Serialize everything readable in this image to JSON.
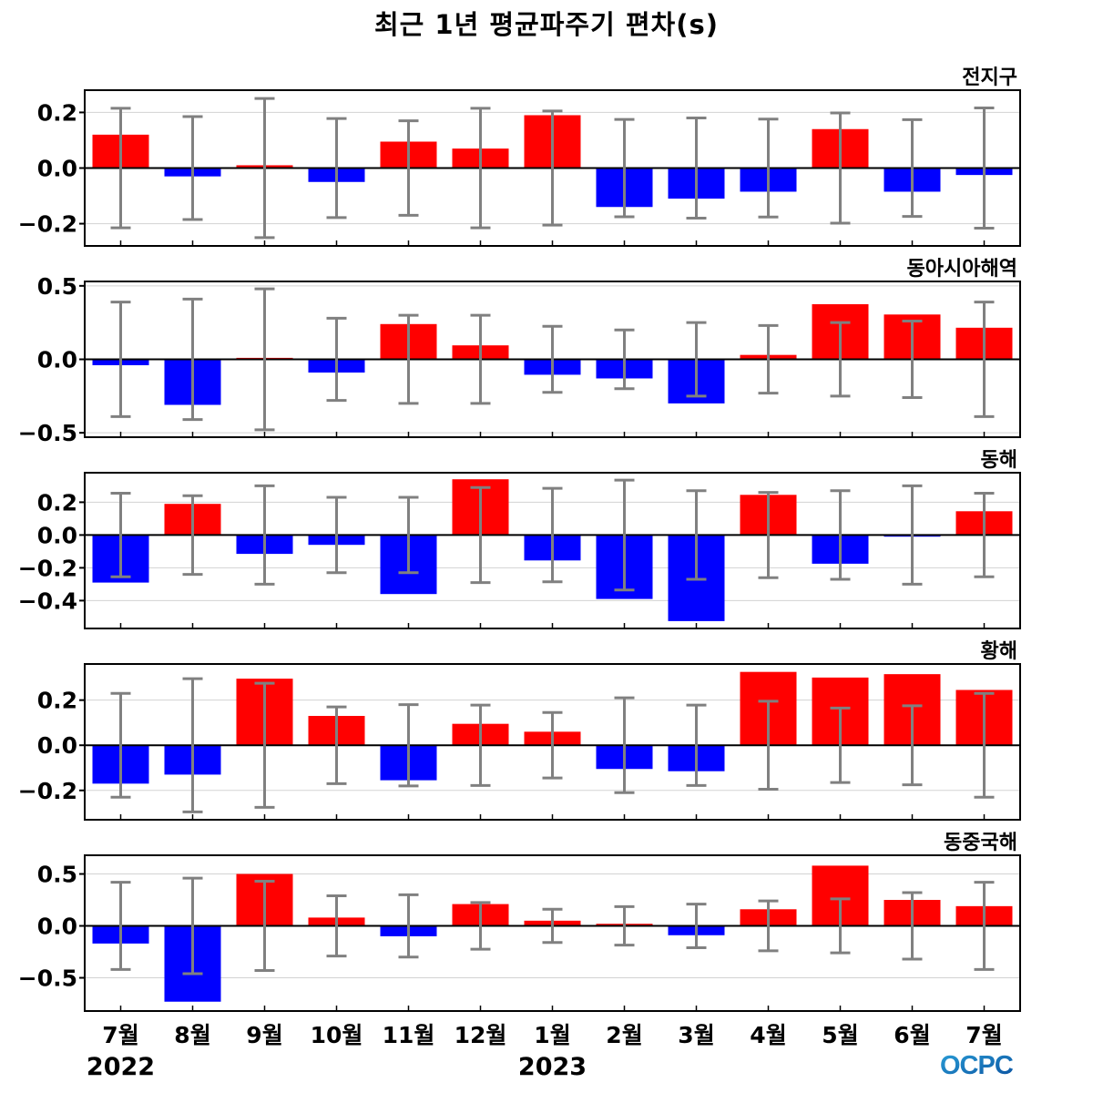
{
  "title": "최근 1년 평균파주기 편차(s)",
  "logo_text": "OCPC",
  "colors": {
    "positive": "#ff0000",
    "negative": "#0000ff",
    "errorbar": "#808080",
    "grid": "#d3d3d3"
  },
  "chart_data": {
    "type": "bar",
    "categories": [
      "7월",
      "8월",
      "9월",
      "10월",
      "11월",
      "12월",
      "1월",
      "2월",
      "3월",
      "4월",
      "5월",
      "6월",
      "7월"
    ],
    "year_labels": [
      {
        "text": "2022",
        "category_index": 0
      },
      {
        "text": "2023",
        "category_index": 6
      }
    ],
    "panels": [
      {
        "name": "전지구",
        "ylim": [
          -0.28,
          0.28
        ],
        "yticks": [
          0.2,
          0.0,
          -0.2
        ],
        "ytick_labels": [
          "0.2",
          "0.0",
          "−0.2"
        ],
        "values": [
          0.12,
          -0.03,
          0.01,
          -0.05,
          0.095,
          0.07,
          0.19,
          -0.14,
          -0.11,
          -0.085,
          0.14,
          -0.085,
          -0.025
        ],
        "error": [
          0.215,
          0.185,
          0.25,
          0.178,
          0.17,
          0.215,
          0.205,
          0.175,
          0.18,
          0.176,
          0.198,
          0.174,
          0.216
        ]
      },
      {
        "name": "동아시아해역",
        "ylim": [
          -0.53,
          0.53
        ],
        "yticks": [
          0.5,
          0.0,
          -0.5
        ],
        "ytick_labels": [
          "0.5",
          "0.0",
          "−0.5"
        ],
        "values": [
          -0.04,
          -0.31,
          0.01,
          -0.09,
          0.24,
          0.095,
          -0.105,
          -0.13,
          -0.3,
          0.03,
          0.375,
          0.305,
          0.215
        ],
        "error": [
          0.39,
          0.41,
          0.48,
          0.28,
          0.3,
          0.3,
          0.225,
          0.2,
          0.25,
          0.23,
          0.25,
          0.26,
          0.39
        ]
      },
      {
        "name": "동해",
        "ylim": [
          -0.57,
          0.38
        ],
        "yticks": [
          0.2,
          0.0,
          -0.2,
          -0.4
        ],
        "ytick_labels": [
          "0.2",
          "0.0",
          "−0.2",
          "−0.4"
        ],
        "values": [
          -0.29,
          0.19,
          -0.115,
          -0.06,
          -0.36,
          0.34,
          -0.155,
          -0.39,
          -0.525,
          0.245,
          -0.175,
          -0.01,
          0.145
        ],
        "error": [
          0.255,
          0.24,
          0.3,
          0.23,
          0.23,
          0.29,
          0.285,
          0.335,
          0.27,
          0.26,
          0.27,
          0.3,
          0.255
        ]
      },
      {
        "name": "황해",
        "ylim": [
          -0.33,
          0.36
        ],
        "yticks": [
          0.2,
          0.0,
          -0.2
        ],
        "ytick_labels": [
          "0.2",
          "0.0",
          "−0.2"
        ],
        "values": [
          -0.17,
          -0.13,
          0.295,
          0.13,
          -0.155,
          0.095,
          0.06,
          -0.105,
          -0.115,
          0.325,
          0.3,
          0.315,
          0.245
        ],
        "error": [
          0.23,
          0.295,
          0.275,
          0.17,
          0.18,
          0.178,
          0.145,
          0.21,
          0.178,
          0.195,
          0.165,
          0.175,
          0.23
        ]
      },
      {
        "name": "동중국해",
        "ylim": [
          -0.82,
          0.68
        ],
        "yticks": [
          0.5,
          0.0,
          -0.5
        ],
        "ytick_labels": [
          "0.5",
          "0.0",
          "−0.5"
        ],
        "values": [
          -0.17,
          -0.73,
          0.5,
          0.08,
          -0.1,
          0.21,
          0.05,
          0.02,
          -0.09,
          0.16,
          0.58,
          0.25,
          0.19
        ],
        "error": [
          0.42,
          0.46,
          0.43,
          0.29,
          0.3,
          0.225,
          0.16,
          0.185,
          0.21,
          0.24,
          0.26,
          0.32,
          0.42
        ]
      }
    ]
  }
}
